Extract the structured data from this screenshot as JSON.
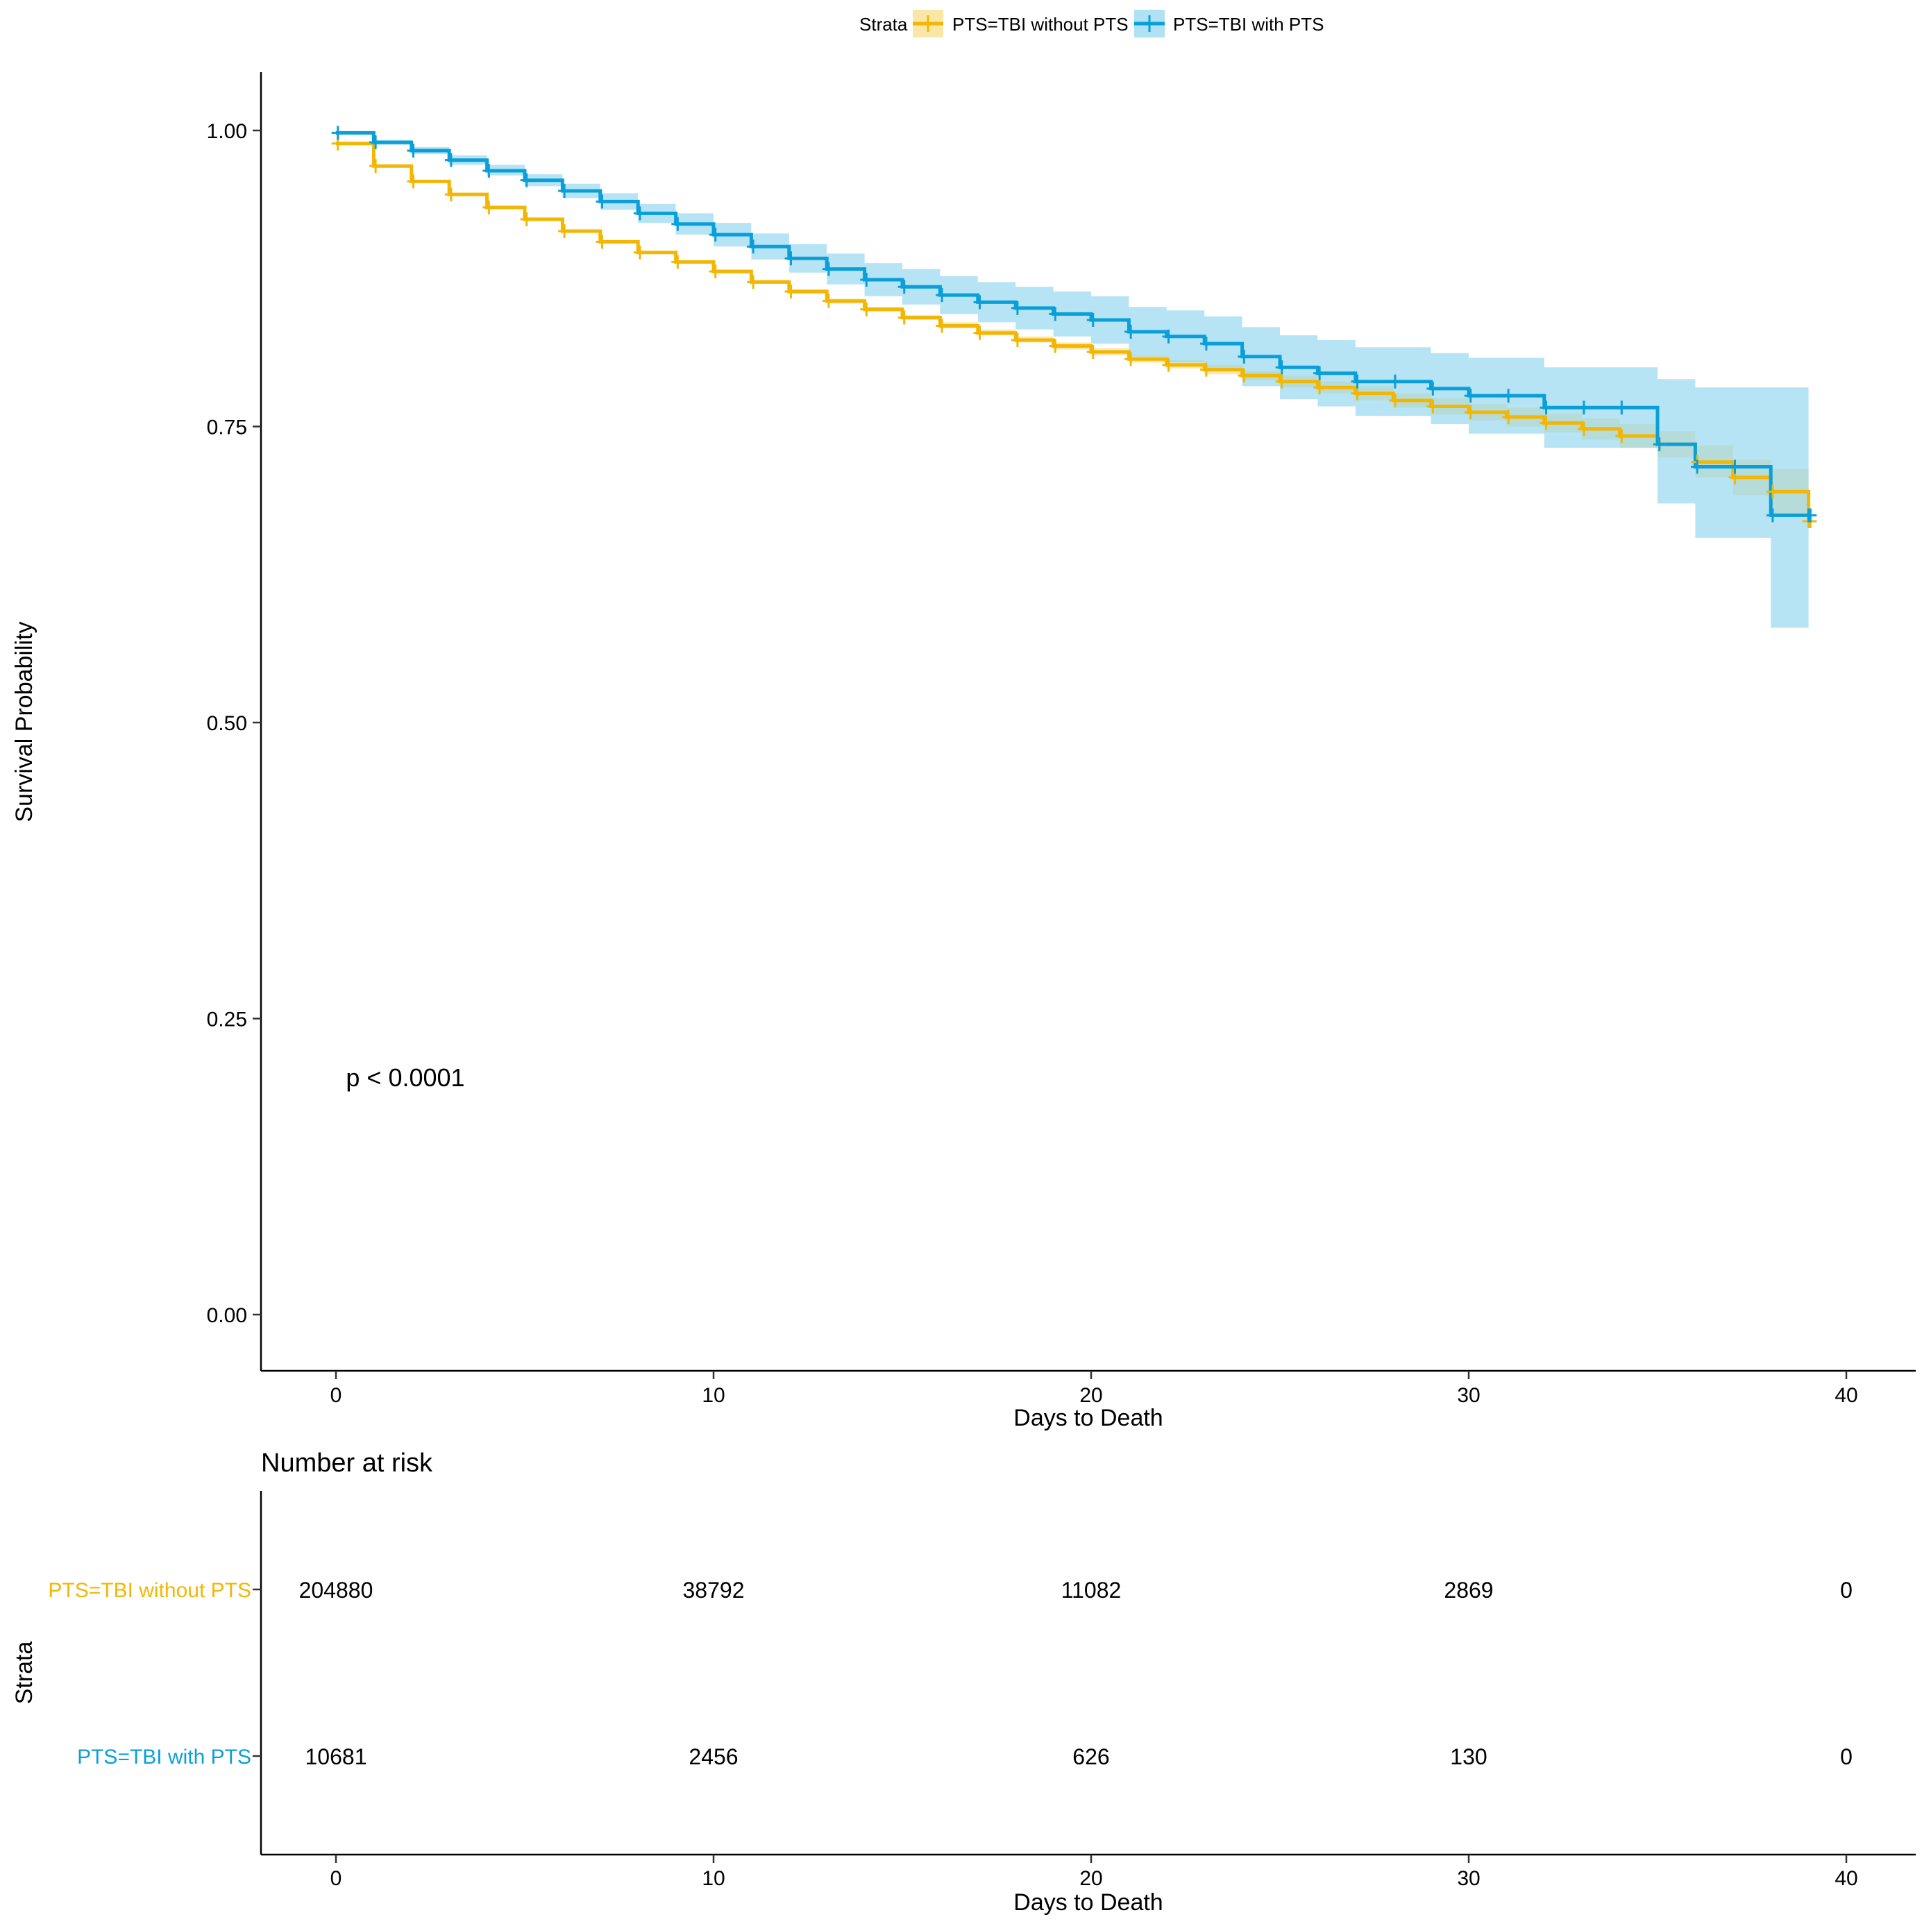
{
  "chart_data": {
    "type": "line",
    "subtype": "kaplan-meier step",
    "legend": {
      "title": "Strata",
      "placement": "top"
    },
    "main_plot": {
      "xlabel": "Days to Death",
      "ylabel": "Survival Probability",
      "xlim": [
        -2,
        42
      ],
      "ylim": [
        -0.05,
        1.05
      ],
      "x_ticks": [
        0,
        10,
        20,
        30,
        40
      ],
      "y_ticks": [
        0,
        0.25,
        0.5,
        0.75,
        1.0
      ],
      "y_tick_labels": [
        "0.00",
        "0.25",
        "0.50",
        "0.75",
        "1.00"
      ],
      "x_tick_labels": [
        "0",
        "10",
        "20",
        "30",
        "40"
      ],
      "annotation": "p < 0.0001",
      "annotation_position": [
        1,
        0.2
      ],
      "grid": false
    },
    "series": [
      {
        "name": "PTS=TBI without PTS",
        "color": "#F2B705",
        "ci_color": "#F7D66B",
        "x": [
          0,
          1,
          2,
          3,
          4,
          5,
          6,
          7,
          8,
          9,
          10,
          11,
          12,
          13,
          14,
          15,
          16,
          17,
          18,
          19,
          20,
          21,
          22,
          23,
          24,
          25,
          26,
          27,
          28,
          29,
          30,
          31,
          32,
          33,
          34,
          35,
          36,
          37,
          38,
          39
        ],
        "y": [
          0.989,
          0.97,
          0.957,
          0.946,
          0.935,
          0.925,
          0.915,
          0.906,
          0.897,
          0.889,
          0.881,
          0.872,
          0.864,
          0.856,
          0.849,
          0.842,
          0.835,
          0.829,
          0.823,
          0.818,
          0.813,
          0.807,
          0.802,
          0.798,
          0.793,
          0.788,
          0.783,
          0.778,
          0.772,
          0.767,
          0.762,
          0.758,
          0.753,
          0.748,
          0.742,
          0.735,
          0.72,
          0.707,
          0.695,
          0.67
        ],
        "ci_lower": [
          0.988,
          0.969,
          0.956,
          0.945,
          0.934,
          0.924,
          0.914,
          0.905,
          0.896,
          0.888,
          0.879,
          0.871,
          0.862,
          0.854,
          0.847,
          0.84,
          0.833,
          0.827,
          0.821,
          0.815,
          0.81,
          0.804,
          0.799,
          0.794,
          0.789,
          0.783,
          0.778,
          0.772,
          0.766,
          0.76,
          0.755,
          0.75,
          0.745,
          0.739,
          0.732,
          0.724,
          0.707,
          0.692,
          0.676,
          0.655
        ],
        "ci_upper": [
          0.99,
          0.971,
          0.958,
          0.947,
          0.936,
          0.926,
          0.916,
          0.907,
          0.898,
          0.89,
          0.882,
          0.874,
          0.866,
          0.858,
          0.851,
          0.844,
          0.838,
          0.832,
          0.826,
          0.821,
          0.816,
          0.81,
          0.806,
          0.802,
          0.797,
          0.793,
          0.788,
          0.784,
          0.778,
          0.774,
          0.769,
          0.766,
          0.761,
          0.757,
          0.752,
          0.746,
          0.734,
          0.722,
          0.714,
          0.69
        ]
      },
      {
        "name": "PTS=TBI with PTS",
        "color": "#0A9FD8",
        "ci_color": "#8FD5F0",
        "x": [
          0,
          1,
          2,
          3,
          4,
          5,
          6,
          7,
          8,
          9,
          10,
          11,
          12,
          13,
          14,
          15,
          16,
          17,
          18,
          19,
          20,
          21,
          22,
          23,
          24,
          25,
          26,
          27,
          28,
          29,
          30,
          31,
          32,
          33,
          34,
          35,
          36,
          37,
          38,
          39
        ],
        "y": [
          0.998,
          0.99,
          0.983,
          0.975,
          0.966,
          0.958,
          0.949,
          0.94,
          0.93,
          0.921,
          0.912,
          0.902,
          0.892,
          0.883,
          0.874,
          0.868,
          0.861,
          0.855,
          0.85,
          0.845,
          0.84,
          0.83,
          0.826,
          0.82,
          0.809,
          0.8,
          0.795,
          0.788,
          0.788,
          0.782,
          0.776,
          0.776,
          0.766,
          0.766,
          0.766,
          0.735,
          0.716,
          0.716,
          0.675,
          0.675
        ],
        "ci_lower": [
          0.997,
          0.988,
          0.98,
          0.971,
          0.962,
          0.953,
          0.943,
          0.933,
          0.922,
          0.912,
          0.902,
          0.891,
          0.88,
          0.87,
          0.86,
          0.853,
          0.845,
          0.838,
          0.832,
          0.826,
          0.82,
          0.809,
          0.804,
          0.797,
          0.784,
          0.773,
          0.767,
          0.759,
          0.759,
          0.752,
          0.744,
          0.744,
          0.732,
          0.732,
          0.732,
          0.685,
          0.656,
          0.656,
          0.58,
          0.58
        ],
        "ci_upper": [
          0.999,
          0.992,
          0.986,
          0.979,
          0.971,
          0.963,
          0.955,
          0.947,
          0.938,
          0.93,
          0.922,
          0.913,
          0.904,
          0.896,
          0.888,
          0.883,
          0.877,
          0.872,
          0.868,
          0.864,
          0.86,
          0.851,
          0.848,
          0.843,
          0.834,
          0.827,
          0.823,
          0.817,
          0.817,
          0.812,
          0.808,
          0.808,
          0.8,
          0.8,
          0.8,
          0.79,
          0.783,
          0.783,
          0.783,
          0.783
        ]
      }
    ],
    "risk_table": {
      "title": "Number at risk",
      "xlabel": "Days to Death",
      "ylabel": "Strata",
      "x_ticks": [
        0,
        10,
        20,
        30,
        40
      ],
      "x_tick_labels": [
        "0",
        "10",
        "20",
        "30",
        "40"
      ],
      "rows": [
        {
          "label": "PTS=TBI without PTS",
          "color": "#F2B705",
          "values": [
            "204880",
            "38792",
            "11082",
            "2869",
            "0"
          ]
        },
        {
          "label": "PTS=TBI with PTS",
          "color": "#0A9FD8",
          "values": [
            "10681",
            "2456",
            "626",
            "130",
            "0"
          ]
        }
      ]
    }
  }
}
